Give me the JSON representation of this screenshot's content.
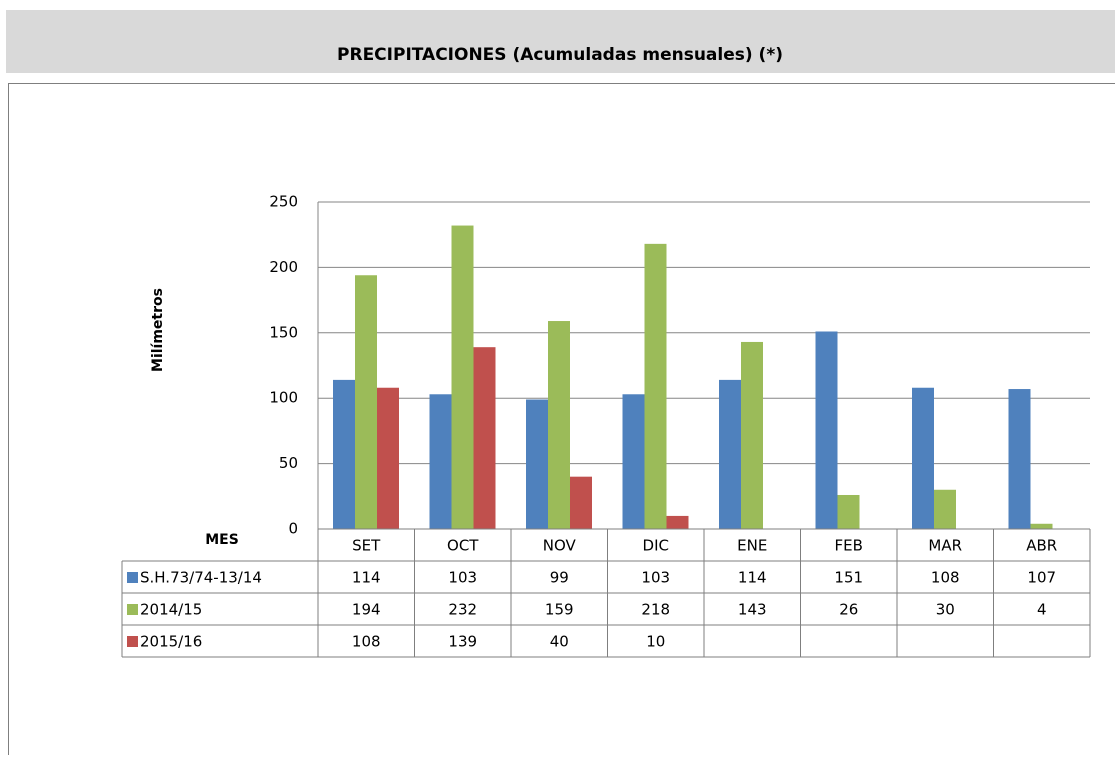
{
  "chart_data": {
    "type": "bar",
    "title": "PRECIPITACIONES (Acumuladas mensuales) (*)",
    "ylabel": "Milímetros",
    "xlabel": "MES",
    "categories": [
      "SET",
      "OCT",
      "NOV",
      "DIC",
      "ENE",
      "FEB",
      "MAR",
      "ABR"
    ],
    "series": [
      {
        "name": "S.H.73/74-13/14",
        "color": "#4f81bd",
        "values": [
          114,
          103,
          99,
          103,
          114,
          151,
          108,
          107
        ]
      },
      {
        "name": "2014/15",
        "color": "#9bbb59",
        "values": [
          194,
          232,
          159,
          218,
          143,
          26,
          30,
          4
        ]
      },
      {
        "name": "2015/16",
        "color": "#c0504d",
        "values": [
          108,
          139,
          40,
          10,
          null,
          null,
          null,
          null
        ]
      }
    ],
    "ylim": [
      0,
      250
    ],
    "yticks": [
      0,
      50,
      100,
      150,
      200,
      250
    ],
    "grid": true
  }
}
